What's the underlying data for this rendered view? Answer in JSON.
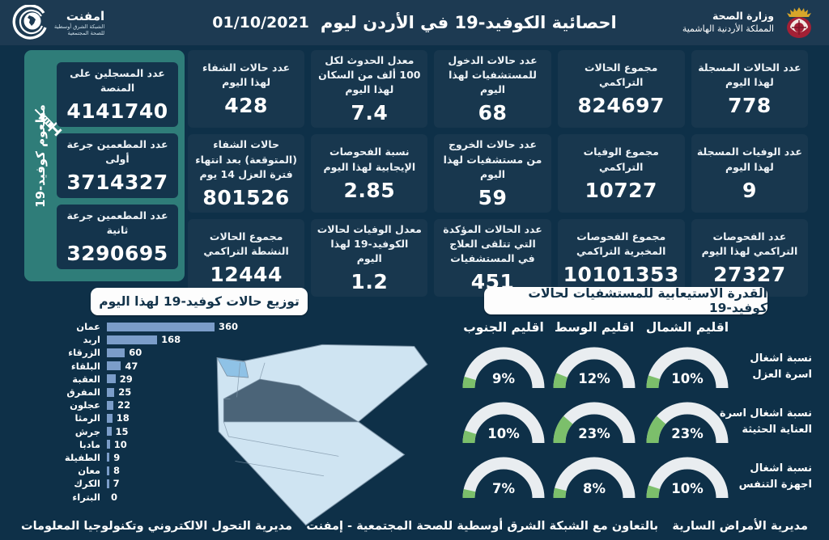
{
  "header": {
    "title": "احصائية الكوفيد-19 في الأردن ليوم",
    "date": "01/10/2021",
    "ministry_line1": "وزارة الصحة",
    "ministry_line2": "المملكة الأردنية الهاشمية",
    "emphnet_name": "امفنت",
    "emphnet_line1": "الشبكة الشرق أوسطية",
    "emphnet_line2": "للصحة المجتمعية"
  },
  "vaccination": {
    "side_label": "مطعوم كوفيد-19",
    "cards": [
      {
        "label": "عدد المسجلين على المنصة",
        "value": "4141740"
      },
      {
        "label": "عدد المطعمين جرعة أولى",
        "value": "3714327"
      },
      {
        "label": "عدد المطعمين جرعة ثانية",
        "value": "3290695"
      }
    ]
  },
  "stats": [
    {
      "label": "عدد الحالات المسجلة لهذا اليوم",
      "value": "778"
    },
    {
      "label": "مجموع الحالات التراكمي",
      "value": "824697"
    },
    {
      "label": "عدد حالات الدخول للمستشفيات لهذا اليوم",
      "value": "68"
    },
    {
      "label": "معدل الحدوث لكل 100 ألف من السكان لهذا اليوم",
      "value": "7.4"
    },
    {
      "label": "عدد حالات الشفاء لهذا اليوم",
      "value": "428"
    },
    {
      "label": "عدد الوفيات المسجلة لهذا اليوم",
      "value": "9"
    },
    {
      "label": "مجموع الوفيات التراكمي",
      "value": "10727"
    },
    {
      "label": "عدد حالات الخروج من مستشفيات لهذا اليوم",
      "value": "59"
    },
    {
      "label": "نسبة الفحوصات الإيجابية لهذا اليوم",
      "value": "2.85"
    },
    {
      "label": "حالات الشفاء (المتوقعة) بعد انتهاء فترة العزل 14 يوم",
      "value": "801526"
    },
    {
      "label": "عدد الفحوصات التراكمي لهذا اليوم",
      "value": "27327"
    },
    {
      "label": "مجموع الفحوصات المخبرية التراكمي",
      "value": "10101353"
    },
    {
      "label": "عدد الحالات المؤكدة التي تتلقى العلاج في المستشفيات",
      "value": "451"
    },
    {
      "label": "معدل الوفيات لحالات الكوفيد-19 لهذا اليوم",
      "value": "1.2"
    },
    {
      "label": "مجموع الحالات النشطة التراكمي",
      "value": "12444"
    }
  ],
  "chart_data": [
    {
      "type": "bar",
      "title": "توزيع حالات كوفيد-19 لهذا اليوم",
      "orientation": "horizontal",
      "categories": [
        "عمان",
        "اربد",
        "الزرقاء",
        "البلقاء",
        "العقبة",
        "المفرق",
        "عجلون",
        "الرمثا",
        "جرش",
        "مادبا",
        "الطفيلة",
        "معان",
        "الكرك",
        "البتراء"
      ],
      "values": [
        360,
        168,
        60,
        47,
        29,
        25,
        22,
        18,
        15,
        10,
        9,
        8,
        7,
        0
      ],
      "xlim": [
        0,
        360
      ],
      "bar_color": "#7b9dc9"
    },
    {
      "type": "gauge",
      "title": "القدرة الاستيعابية للمستشفيات لحالات كوفيد-19",
      "unit": "%",
      "range": [
        0,
        100
      ],
      "regions": [
        "اقليم الشمال",
        "اقليم الوسط",
        "اقليم الجنوب"
      ],
      "rows": [
        {
          "label": "نسبة اشغال اسرة العزل",
          "label_lines": [
            "نسبة اشغال",
            "اسرة العزل"
          ],
          "values": [
            10,
            12,
            9
          ]
        },
        {
          "label": "نسبة اشغال اسرة العناية الحثيثة",
          "label_lines": [
            "نسبة اشغال اسرة",
            "العناية الحثيثة"
          ],
          "values": [
            23,
            23,
            10
          ]
        },
        {
          "label": "نسبة اشغال اجهزة التنفس",
          "label_lines": [
            "نسبة اشغال",
            "اجهزة التنفس"
          ],
          "values": [
            10,
            8,
            7
          ]
        }
      ]
    }
  ],
  "footer": {
    "right": "مديرية الأمراض السارية",
    "center": "بالتعاون مع الشبكة الشرق أوسطية للصحة المجتمعية - إمفنت",
    "left": "مديرية التحول الالكتروني وتكنولوجيا المعلومات"
  },
  "colors": {
    "background": "#0e3048",
    "header": "#1d3a52",
    "card": "#18374e",
    "teal_panel": "#2f7d79",
    "bar": "#7b9dc9",
    "gauge_track": "#e9edf0",
    "gauge_value": "#7cbf6b",
    "map_light": "#cfe4f2",
    "map_medium": "#8fc2e6",
    "map_dark": "#4b6478"
  }
}
